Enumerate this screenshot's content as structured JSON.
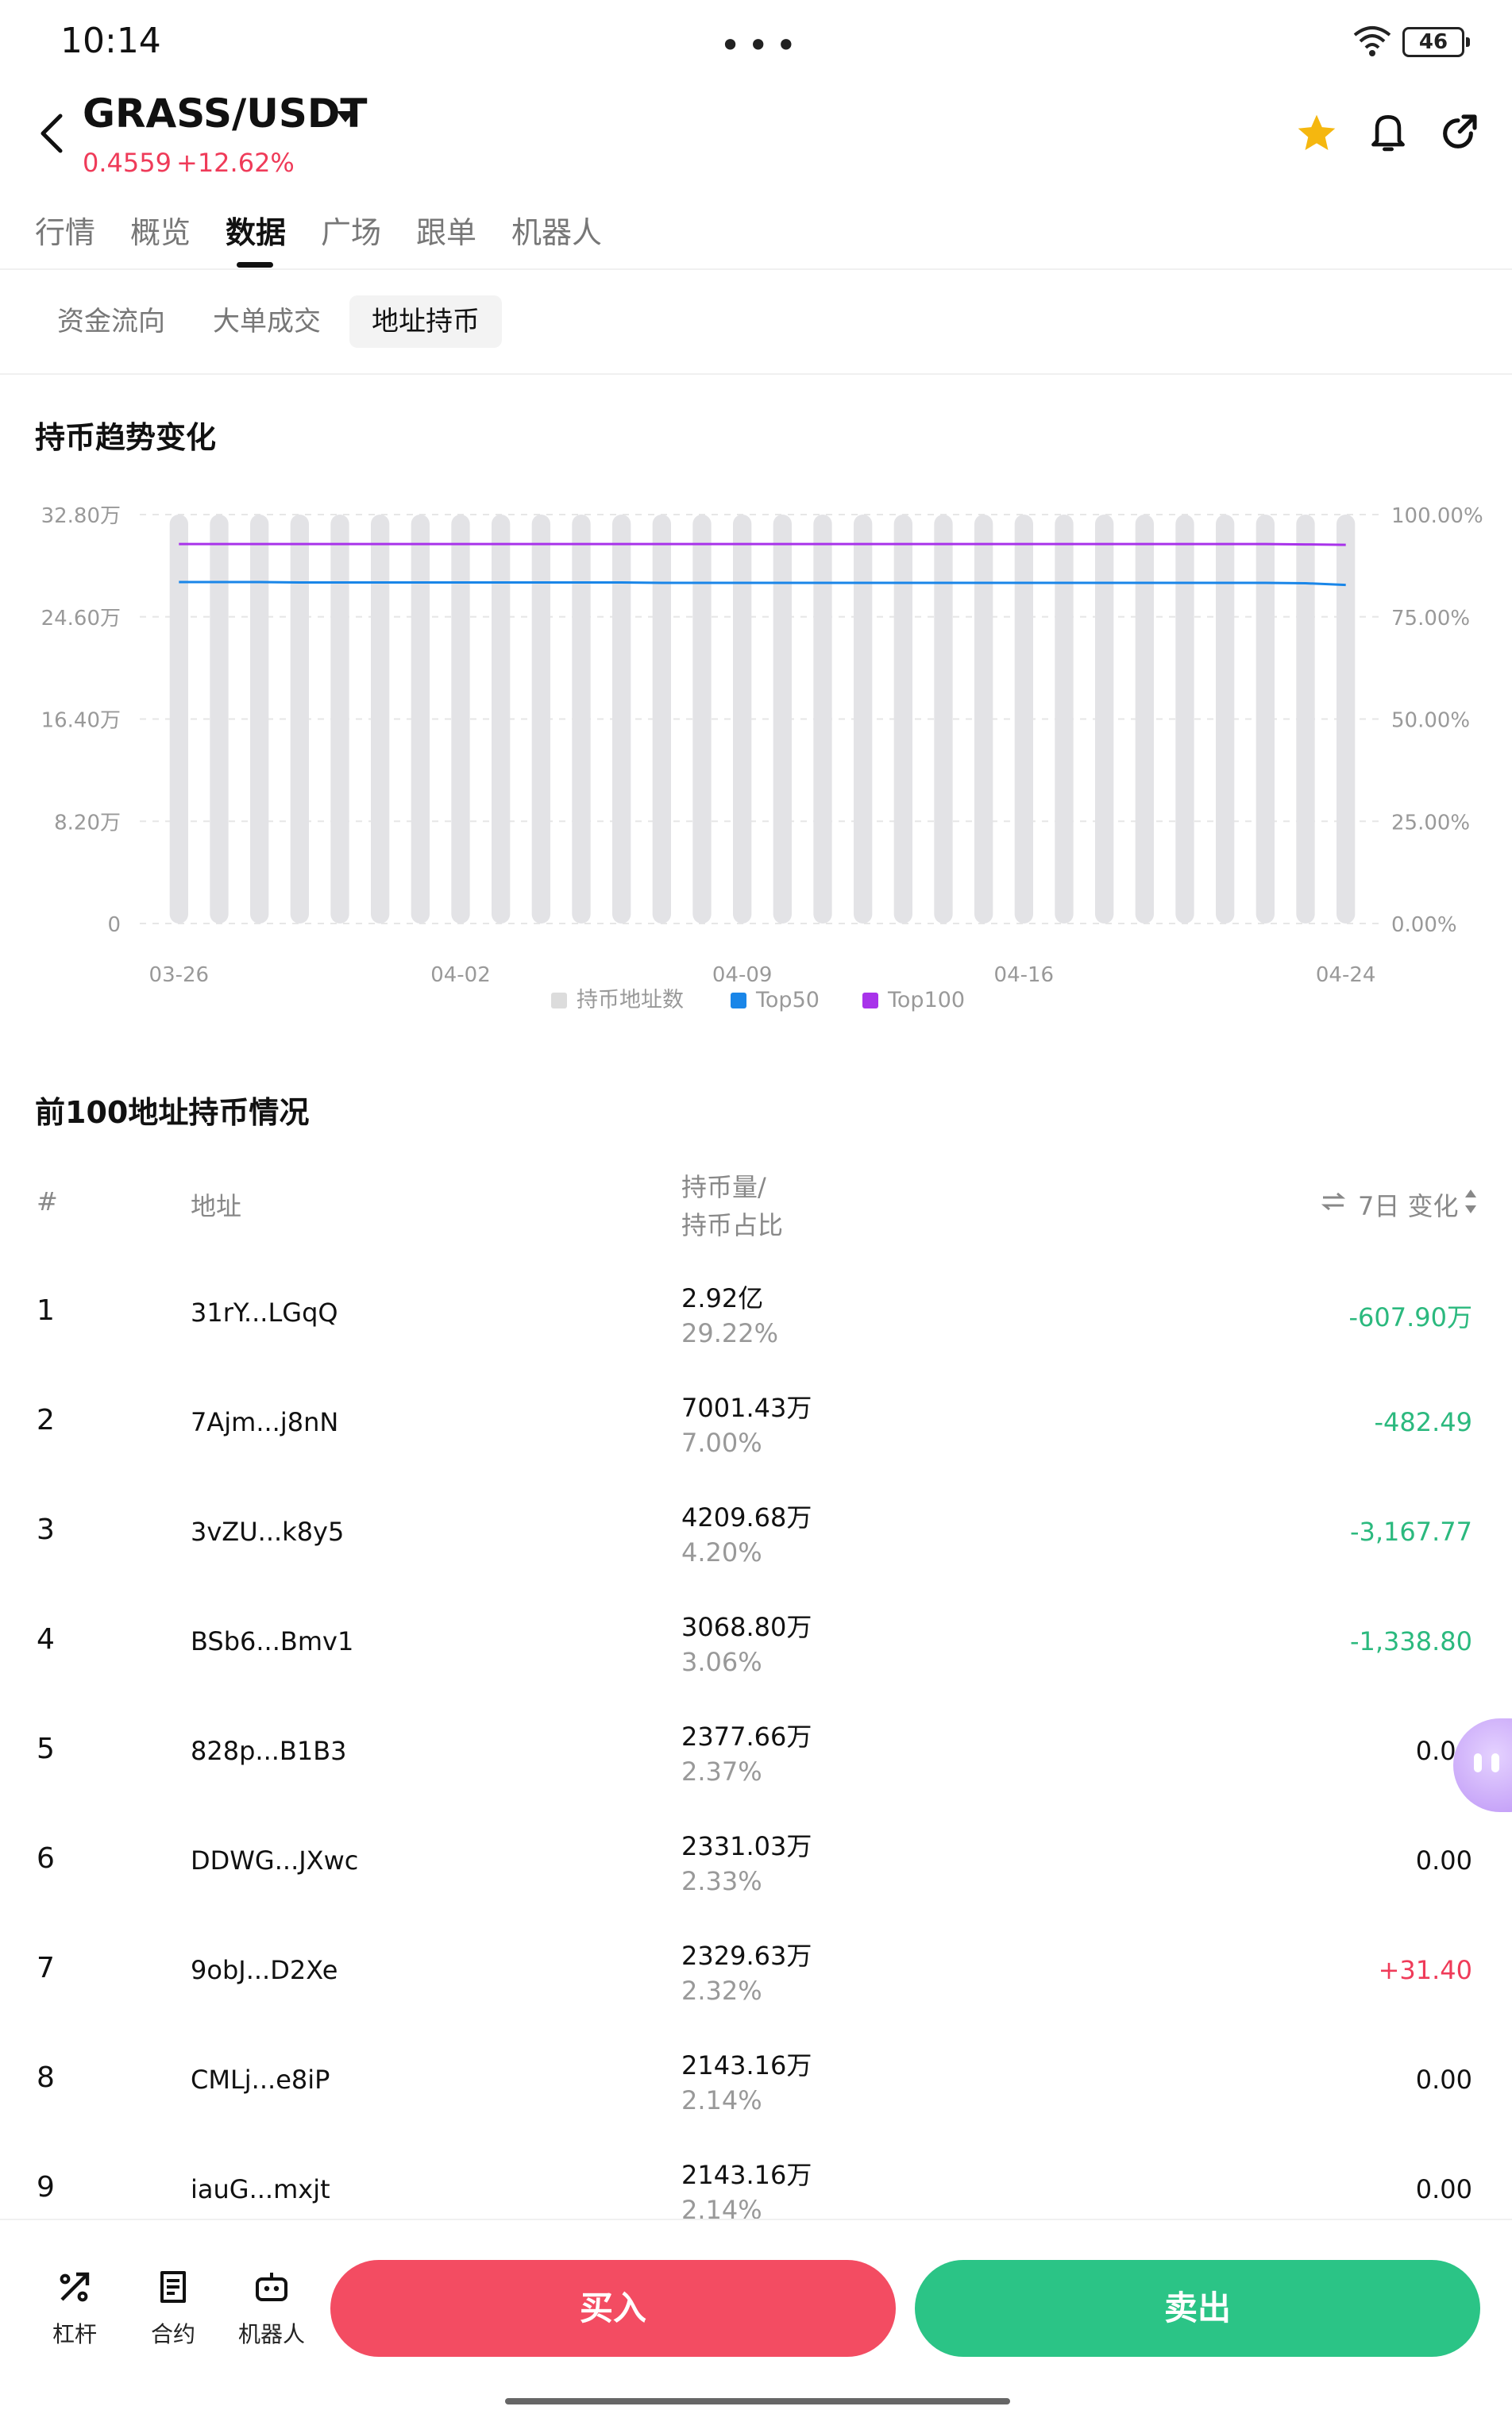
{
  "status_bar": {
    "time": "10:14",
    "dots": "•••",
    "battery": "46"
  },
  "header": {
    "title": "GRASS/USDT",
    "price": "0.4559",
    "change": "+12.62%"
  },
  "main_tabs": [
    "行情",
    "概览",
    "数据",
    "广场",
    "跟单",
    "机器人"
  ],
  "sub_tabs": [
    "资金流向",
    "大单成交",
    "地址持币"
  ],
  "trend_section": {
    "title": "持币趋势变化"
  },
  "chart_data": {
    "type": "bar+line",
    "title": "持币趋势变化",
    "x_ticks": [
      "03-26",
      "04-02",
      "04-09",
      "04-16",
      "04-24"
    ],
    "y_left_ticks": [
      "32.80万",
      "24.60万",
      "16.40万",
      "8.20万",
      "0"
    ],
    "y_right_ticks": [
      "100.00%",
      "75.00%",
      "50.00%",
      "25.00%",
      "0.00%"
    ],
    "ylim_left": [
      0,
      328000
    ],
    "ylim_right": [
      0,
      100
    ],
    "bar_count": 30,
    "series": [
      {
        "name": "持币地址数",
        "axis": "left",
        "color": "#e3e3e6",
        "values": [
          328000,
          328000,
          328000,
          328000,
          328000,
          328000,
          328000,
          328000,
          328000,
          328000,
          328000,
          328000,
          328000,
          328000,
          328000,
          328000,
          328000,
          328000,
          328000,
          328000,
          328000,
          328000,
          328000,
          328000,
          328000,
          328000,
          328000,
          328000,
          328000,
          328000
        ]
      },
      {
        "name": "Top50",
        "axis": "right",
        "color": "#1a86e8",
        "values": [
          83.5,
          83.5,
          83.5,
          83.4,
          83.4,
          83.4,
          83.4,
          83.4,
          83.4,
          83.4,
          83.4,
          83.4,
          83.3,
          83.3,
          83.3,
          83.3,
          83.3,
          83.3,
          83.3,
          83.3,
          83.3,
          83.3,
          83.3,
          83.3,
          83.3,
          83.3,
          83.3,
          83.3,
          83.2,
          82.8
        ]
      },
      {
        "name": "Top100",
        "axis": "right",
        "color": "#a833ea",
        "values": [
          92.8,
          92.8,
          92.8,
          92.8,
          92.8,
          92.8,
          92.8,
          92.8,
          92.8,
          92.8,
          92.8,
          92.8,
          92.8,
          92.8,
          92.8,
          92.8,
          92.8,
          92.8,
          92.8,
          92.8,
          92.8,
          92.8,
          92.8,
          92.8,
          92.8,
          92.8,
          92.8,
          92.8,
          92.7,
          92.6
        ]
      }
    ],
    "legend": [
      "持币地址数",
      "Top50",
      "Top100"
    ],
    "legend_position": "bottom"
  },
  "holders_section": {
    "title": "前100地址持币情况"
  },
  "table": {
    "headers": {
      "idx": "#",
      "address": "地址",
      "amount_line1": "持币量/",
      "amount_line2": "持币占比",
      "change": "7日 变化"
    },
    "rows": [
      {
        "idx": "1",
        "address": "31rY...LGqQ",
        "amount": "2.92亿",
        "pct": "29.22%",
        "change": "-607.90万",
        "trend": "neg"
      },
      {
        "idx": "2",
        "address": "7Ajm...j8nN",
        "amount": "7001.43万",
        "pct": "7.00%",
        "change": "-482.49",
        "trend": "neg"
      },
      {
        "idx": "3",
        "address": "3vZU...k8y5",
        "amount": "4209.68万",
        "pct": "4.20%",
        "change": "-3,167.77",
        "trend": "neg"
      },
      {
        "idx": "4",
        "address": "BSb6...Bmv1",
        "amount": "3068.80万",
        "pct": "3.06%",
        "change": "-1,338.80",
        "trend": "neg"
      },
      {
        "idx": "5",
        "address": "828p...B1B3",
        "amount": "2377.66万",
        "pct": "2.37%",
        "change": "0.00",
        "trend": "zero"
      },
      {
        "idx": "6",
        "address": "DDWG...JXwc",
        "amount": "2331.03万",
        "pct": "2.33%",
        "change": "0.00",
        "trend": "zero"
      },
      {
        "idx": "7",
        "address": "9obJ...D2Xe",
        "amount": "2329.63万",
        "pct": "2.32%",
        "change": "+31.40",
        "trend": "pos"
      },
      {
        "idx": "8",
        "address": "CMLj...e8iP",
        "amount": "2143.16万",
        "pct": "2.14%",
        "change": "0.00",
        "trend": "zero"
      },
      {
        "idx": "9",
        "address": "iauG...mxjt",
        "amount": "2143.16万",
        "pct": "2.14%",
        "change": "0.00",
        "trend": "zero"
      }
    ]
  },
  "bottom_bar": {
    "tools": [
      "杠杆",
      "合约",
      "机器人"
    ],
    "buy_label": "买入",
    "sell_label": "卖出"
  },
  "colors": {
    "up": "#ef3b59",
    "down": "#2bb97e",
    "buy": "#f34c62",
    "sell": "#2bc486",
    "star": "#f5b70f"
  }
}
